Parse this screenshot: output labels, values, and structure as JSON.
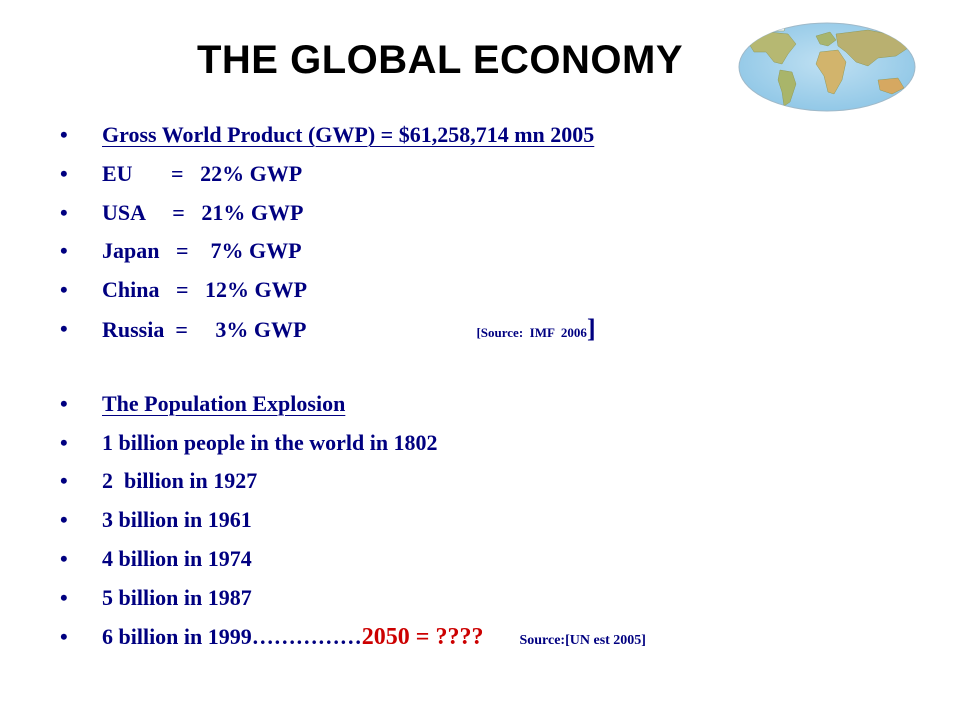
{
  "slide": {
    "title": "THE GLOBAL ECONOMY",
    "globe_icon": "world-map-oval-icon",
    "colors": {
      "text": "#000080",
      "highlight": "#cc0000",
      "title": "#000000"
    }
  },
  "economy": {
    "heading": "Gross World Product (GWP) = $61,258,714 mn 2005",
    "items": [
      "EU       =   22% GWP",
      "USA     =   21% GWP",
      "Japan   =    7% GWP",
      "China   =   12% GWP"
    ],
    "russia": "Russia  =     3% GWP",
    "source_open": "[Source:  IMF  2006",
    "source_close": "]"
  },
  "population": {
    "heading": "The Population Explosion",
    "items": [
      "1 billion people in the world in 1802",
      "2  billion in 1927",
      "3 billion in 1961",
      "4 billion in 1974",
      "5 billion in 1987"
    ],
    "last_prefix": "6 billion in 1999……………",
    "last_highlight": "2050 = ????",
    "last_source": "Source:[UN est 2005]"
  }
}
